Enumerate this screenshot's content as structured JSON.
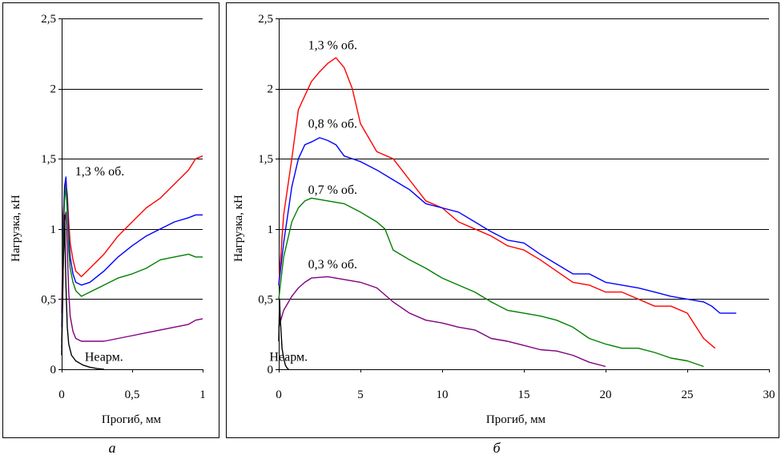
{
  "figure": {
    "captions": [
      "а",
      "б"
    ]
  },
  "chart_data": [
    {
      "type": "line",
      "panel": "а",
      "xlabel": "Прогиб, мм",
      "ylabel": "Нагрузка, кН",
      "xlim": [
        0,
        1
      ],
      "ylim": [
        0,
        2.5
      ],
      "xticks": [
        0,
        0.5,
        1
      ],
      "xtick_labels": [
        "0",
        "0,5",
        "1"
      ],
      "yticks": [
        0,
        0.5,
        1,
        1.5,
        2,
        2.5
      ],
      "ytick_labels": [
        "0",
        "0,5",
        "1",
        "1,5",
        "2",
        "2,5"
      ],
      "grid": "horizontal",
      "annotations": [
        {
          "text": "1,3 % об.",
          "x": 0.27,
          "y": 1.38
        },
        {
          "text": "Неарм.",
          "x": 0.3,
          "y": 0.06
        }
      ],
      "series": [
        {
          "color": "#ff0000",
          "x": [
            0,
            0.01,
            0.02,
            0.03,
            0.04,
            0.05,
            0.06,
            0.08,
            0.1,
            0.14,
            0.2,
            0.3,
            0.4,
            0.5,
            0.6,
            0.7,
            0.8,
            0.9,
            0.95,
            1.0
          ],
          "y": [
            0.4,
            1.1,
            1.25,
            1.32,
            1.25,
            1.05,
            0.9,
            0.78,
            0.7,
            0.66,
            0.72,
            0.82,
            0.95,
            1.05,
            1.15,
            1.22,
            1.32,
            1.42,
            1.5,
            1.52
          ]
        },
        {
          "color": "#0000ff",
          "x": [
            0,
            0.01,
            0.02,
            0.03,
            0.04,
            0.05,
            0.06,
            0.08,
            0.1,
            0.14,
            0.2,
            0.3,
            0.4,
            0.5,
            0.6,
            0.7,
            0.8,
            0.9,
            0.95,
            1.0
          ],
          "y": [
            0.3,
            1.0,
            1.3,
            1.37,
            1.2,
            0.95,
            0.8,
            0.68,
            0.62,
            0.6,
            0.62,
            0.7,
            0.8,
            0.88,
            0.95,
            1.0,
            1.05,
            1.08,
            1.1,
            1.1
          ]
        },
        {
          "color": "#008000",
          "x": [
            0,
            0.01,
            0.02,
            0.03,
            0.04,
            0.05,
            0.06,
            0.08,
            0.1,
            0.14,
            0.2,
            0.3,
            0.4,
            0.5,
            0.6,
            0.7,
            0.8,
            0.9,
            0.95,
            1.0
          ],
          "y": [
            0.2,
            0.9,
            1.2,
            1.3,
            1.12,
            0.85,
            0.72,
            0.62,
            0.56,
            0.52,
            0.55,
            0.6,
            0.65,
            0.68,
            0.72,
            0.78,
            0.8,
            0.82,
            0.8,
            0.8
          ]
        },
        {
          "color": "#800080",
          "x": [
            0,
            0.01,
            0.02,
            0.03,
            0.04,
            0.05,
            0.06,
            0.08,
            0.1,
            0.14,
            0.2,
            0.3,
            0.4,
            0.5,
            0.6,
            0.7,
            0.8,
            0.9,
            0.95,
            1.0
          ],
          "y": [
            0.15,
            0.7,
            1.05,
            1.12,
            0.85,
            0.55,
            0.38,
            0.27,
            0.22,
            0.2,
            0.2,
            0.2,
            0.22,
            0.24,
            0.26,
            0.28,
            0.3,
            0.32,
            0.35,
            0.36
          ]
        },
        {
          "color": "#000000",
          "x": [
            0,
            0.01,
            0.02,
            0.03,
            0.04,
            0.05,
            0.07,
            0.1,
            0.15,
            0.2,
            0.25,
            0.3
          ],
          "y": [
            0.1,
            0.7,
            1.1,
            0.6,
            0.3,
            0.18,
            0.1,
            0.06,
            0.03,
            0.015,
            0.005,
            0.0
          ]
        }
      ]
    },
    {
      "type": "line",
      "panel": "б",
      "xlabel": "Прогиб, мм",
      "ylabel": "Нагрузка, кН",
      "xlim": [
        0,
        30
      ],
      "ylim": [
        0,
        2.5
      ],
      "xticks": [
        0,
        5,
        10,
        15,
        20,
        25,
        30
      ],
      "xtick_labels": [
        "0",
        "5",
        "10",
        "15",
        "20",
        "25",
        "30"
      ],
      "yticks": [
        0,
        0.5,
        1,
        1.5,
        2,
        2.5
      ],
      "ytick_labels": [
        "0",
        "0,5",
        "1",
        "1,5",
        "2",
        "2,5"
      ],
      "grid": "horizontal",
      "annotations": [
        {
          "text": "1,3 % об.",
          "x": 3.3,
          "y": 2.28
        },
        {
          "text": "0,8 % об.",
          "x": 3.3,
          "y": 1.72
        },
        {
          "text": "0,7 % об.",
          "x": 3.3,
          "y": 1.25
        },
        {
          "text": "0,3 % об.",
          "x": 3.3,
          "y": 0.72
        },
        {
          "text": "Неарм.",
          "x": 0.6,
          "y": 0.06
        }
      ],
      "series": [
        {
          "color": "#ff0000",
          "x": [
            0,
            0.3,
            0.8,
            1.2,
            1.6,
            2.0,
            2.5,
            3.0,
            3.5,
            4.0,
            4.5,
            5.0,
            6.0,
            7.0,
            8.0,
            9.0,
            10.0,
            11.0,
            12.0,
            13.0,
            14.0,
            15.0,
            16.0,
            17.0,
            18.0,
            19.0,
            20.0,
            21.0,
            22.0,
            23.0,
            24.0,
            25.0,
            26.0,
            26.7
          ],
          "y": [
            0.6,
            1.1,
            1.5,
            1.85,
            1.95,
            2.05,
            2.12,
            2.18,
            2.22,
            2.15,
            2.0,
            1.75,
            1.55,
            1.5,
            1.35,
            1.2,
            1.15,
            1.05,
            1.0,
            0.95,
            0.88,
            0.85,
            0.78,
            0.7,
            0.62,
            0.6,
            0.55,
            0.55,
            0.5,
            0.45,
            0.45,
            0.4,
            0.22,
            0.15
          ]
        },
        {
          "color": "#0000ff",
          "x": [
            0,
            0.3,
            0.8,
            1.2,
            1.6,
            2.0,
            2.5,
            3.0,
            3.5,
            4.0,
            5.0,
            6.0,
            7.0,
            8.0,
            9.0,
            10.0,
            11.0,
            12.0,
            13.0,
            14.0,
            15.0,
            16.0,
            17.0,
            18.0,
            19.0,
            20.0,
            21.0,
            22.0,
            23.0,
            24.0,
            25.0,
            26.0,
            26.5,
            27.0,
            28.0
          ],
          "y": [
            0.6,
            0.9,
            1.3,
            1.5,
            1.6,
            1.62,
            1.65,
            1.63,
            1.6,
            1.52,
            1.48,
            1.42,
            1.35,
            1.28,
            1.18,
            1.15,
            1.12,
            1.05,
            0.98,
            0.92,
            0.9,
            0.82,
            0.75,
            0.68,
            0.68,
            0.62,
            0.6,
            0.58,
            0.55,
            0.52,
            0.5,
            0.48,
            0.45,
            0.4,
            0.4
          ]
        },
        {
          "color": "#008000",
          "x": [
            0,
            0.3,
            0.8,
            1.2,
            1.6,
            2.0,
            3.0,
            4.0,
            5.0,
            6.0,
            6.5,
            7.0,
            8.0,
            9.0,
            10.0,
            11.0,
            12.0,
            13.0,
            14.0,
            15.0,
            16.0,
            17.0,
            18.0,
            19.0,
            20.0,
            21.0,
            22.0,
            23.0,
            24.0,
            25.0,
            26.0
          ],
          "y": [
            0.5,
            0.8,
            1.05,
            1.15,
            1.2,
            1.22,
            1.2,
            1.18,
            1.12,
            1.05,
            1.0,
            0.85,
            0.78,
            0.72,
            0.65,
            0.6,
            0.55,
            0.48,
            0.42,
            0.4,
            0.38,
            0.35,
            0.3,
            0.22,
            0.18,
            0.15,
            0.15,
            0.12,
            0.08,
            0.06,
            0.02
          ]
        },
        {
          "color": "#800080",
          "x": [
            0,
            0.3,
            0.8,
            1.2,
            1.6,
            2.0,
            3.0,
            4.0,
            5.0,
            6.0,
            7.0,
            8.0,
            9.0,
            10.0,
            11.0,
            12.0,
            13.0,
            14.0,
            15.0,
            16.0,
            17.0,
            18.0,
            19.0,
            20.0
          ],
          "y": [
            0.3,
            0.42,
            0.52,
            0.58,
            0.62,
            0.65,
            0.66,
            0.64,
            0.62,
            0.58,
            0.48,
            0.4,
            0.35,
            0.33,
            0.3,
            0.28,
            0.22,
            0.2,
            0.17,
            0.14,
            0.13,
            0.1,
            0.05,
            0.02
          ]
        },
        {
          "color": "#000000",
          "x": [
            0,
            0.05,
            0.1,
            0.2,
            0.3,
            0.4,
            0.5,
            0.6
          ],
          "y": [
            0.2,
            0.5,
            0.35,
            0.15,
            0.08,
            0.03,
            0.01,
            0.0
          ]
        }
      ]
    }
  ]
}
